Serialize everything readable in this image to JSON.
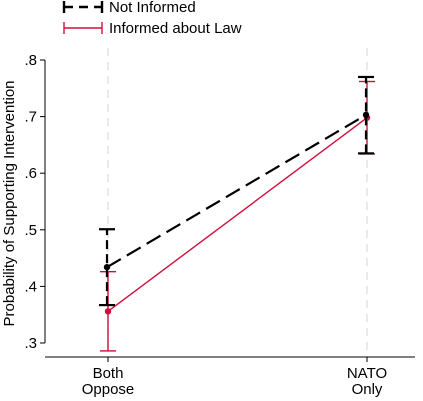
{
  "chart_data": {
    "type": "line",
    "title": "",
    "xlabel": "",
    "ylabel": "Probability of Supporting Intervention",
    "categories": [
      "Both\nOppose",
      "NATO\nOnly"
    ],
    "ylim": [
      0.3,
      0.8
    ],
    "yticks": [
      0.3,
      0.4,
      0.5,
      0.6,
      0.7,
      0.8
    ],
    "ytick_labels": [
      ".3",
      ".4",
      ".5",
      ".6",
      ".7",
      ".8"
    ],
    "grid": "vertical dashed at categories",
    "legend_position": "top-left",
    "series": [
      {
        "name": "Not Informed",
        "values": [
          0.434,
          0.703
        ],
        "ci_low": [
          0.367,
          0.635
        ],
        "ci_high": [
          0.501,
          0.77
        ],
        "color": "#000000",
        "style": "dashed"
      },
      {
        "name": "Informed about Law",
        "values": [
          0.356,
          0.698
        ],
        "ci_low": [
          0.286,
          0.634
        ],
        "ci_high": [
          0.426,
          0.762
        ],
        "color": "#d0103a",
        "style": "solid"
      }
    ]
  }
}
